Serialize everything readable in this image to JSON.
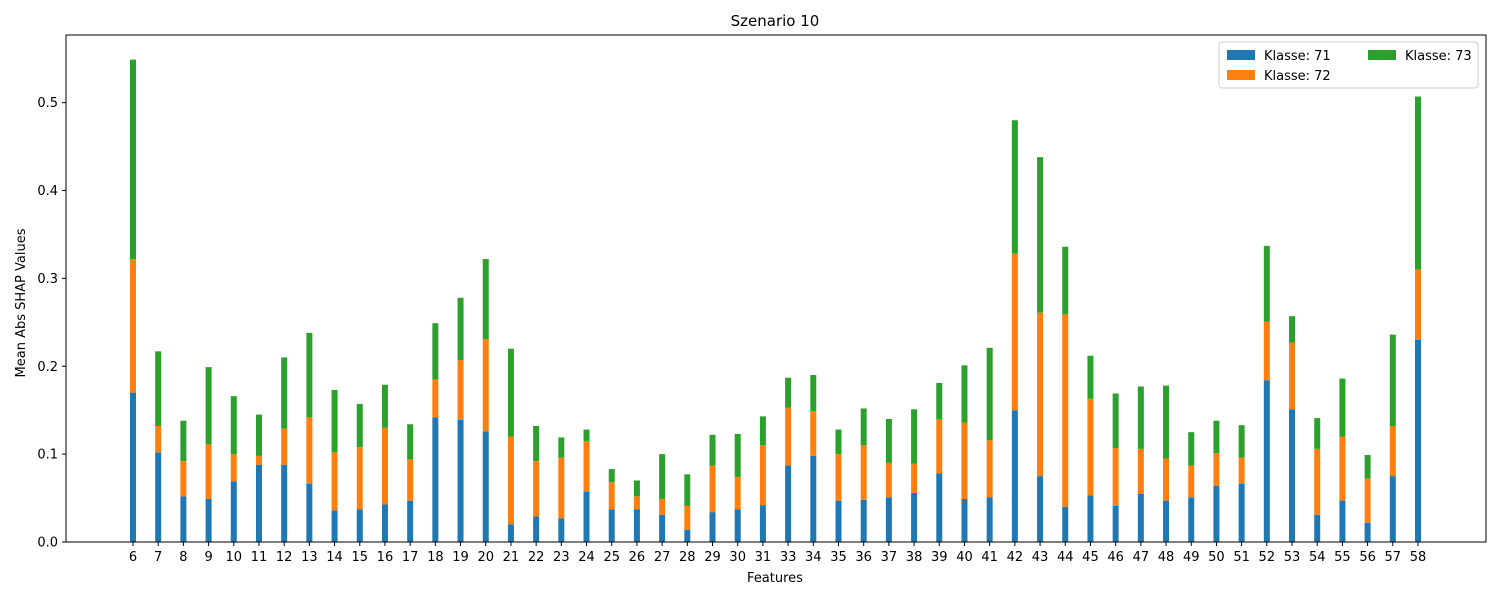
{
  "chart_data": {
    "type": "bar",
    "stacked": true,
    "title": "Szenario 10",
    "xlabel": "Features",
    "ylabel": "Mean Abs SHAP Values",
    "ylim": [
      0,
      0.577
    ],
    "yticks": [
      "0.0",
      "0.1",
      "0.2",
      "0.3",
      "0.4",
      "0.5"
    ],
    "legend_position": "top-right",
    "categories": [
      "6",
      "7",
      "8",
      "9",
      "10",
      "11",
      "12",
      "13",
      "14",
      "15",
      "16",
      "17",
      "18",
      "19",
      "20",
      "21",
      "22",
      "23",
      "24",
      "25",
      "26",
      "27",
      "28",
      "29",
      "30",
      "31",
      "33",
      "34",
      "35",
      "36",
      "37",
      "38",
      "39",
      "40",
      "41",
      "42",
      "43",
      "44",
      "45",
      "46",
      "47",
      "48",
      "49",
      "50",
      "51",
      "52",
      "53",
      "54",
      "55",
      "56",
      "57",
      "58"
    ],
    "series": [
      {
        "name": "Klasse: 71",
        "color": "#1f77b4",
        "values": [
          0.17,
          0.102,
          0.052,
          0.049,
          0.069,
          0.088,
          0.088,
          0.066,
          0.036,
          0.037,
          0.043,
          0.047,
          0.142,
          0.139,
          0.126,
          0.02,
          0.029,
          0.027,
          0.057,
          0.037,
          0.037,
          0.031,
          0.014,
          0.034,
          0.037,
          0.042,
          0.087,
          0.098,
          0.047,
          0.048,
          0.051,
          0.056,
          0.078,
          0.049,
          0.051,
          0.15,
          0.075,
          0.04,
          0.053,
          0.041,
          0.055,
          0.047,
          0.051,
          0.064,
          0.066,
          0.184,
          0.151,
          0.031,
          0.047,
          0.022,
          0.075,
          0.23
        ]
      },
      {
        "name": "Klasse: 72",
        "color": "#ff7f0e",
        "values": [
          0.152,
          0.03,
          0.04,
          0.062,
          0.031,
          0.01,
          0.041,
          0.076,
          0.066,
          0.071,
          0.087,
          0.047,
          0.043,
          0.068,
          0.105,
          0.1,
          0.063,
          0.069,
          0.058,
          0.031,
          0.015,
          0.018,
          0.027,
          0.053,
          0.037,
          0.068,
          0.066,
          0.051,
          0.053,
          0.062,
          0.039,
          0.033,
          0.062,
          0.087,
          0.065,
          0.178,
          0.186,
          0.219,
          0.11,
          0.066,
          0.051,
          0.048,
          0.036,
          0.037,
          0.03,
          0.067,
          0.076,
          0.075,
          0.073,
          0.05,
          0.057,
          0.08
        ]
      },
      {
        "name": "Klasse: 73",
        "color": "#2ca02c",
        "values": [
          0.227,
          0.085,
          0.046,
          0.088,
          0.066,
          0.047,
          0.081,
          0.096,
          0.071,
          0.049,
          0.049,
          0.04,
          0.064,
          0.071,
          0.091,
          0.1,
          0.04,
          0.023,
          0.013,
          0.015,
          0.018,
          0.051,
          0.036,
          0.035,
          0.049,
          0.033,
          0.034,
          0.041,
          0.028,
          0.042,
          0.05,
          0.062,
          0.041,
          0.065,
          0.105,
          0.152,
          0.177,
          0.077,
          0.049,
          0.062,
          0.071,
          0.083,
          0.038,
          0.037,
          0.037,
          0.086,
          0.03,
          0.035,
          0.066,
          0.027,
          0.104,
          0.197
        ]
      }
    ]
  }
}
